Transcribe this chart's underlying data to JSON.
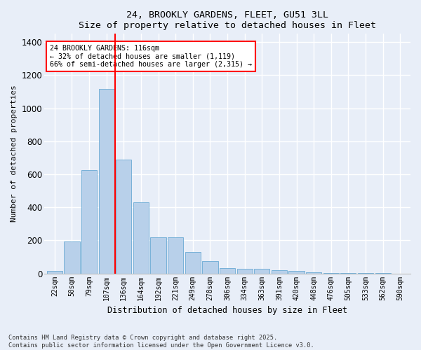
{
  "title": "24, BROOKLY GARDENS, FLEET, GU51 3LL",
  "subtitle": "Size of property relative to detached houses in Fleet",
  "xlabel": "Distribution of detached houses by size in Fleet",
  "ylabel": "Number of detached properties",
  "categories": [
    "22sqm",
    "50sqm",
    "79sqm",
    "107sqm",
    "136sqm",
    "164sqm",
    "192sqm",
    "221sqm",
    "249sqm",
    "278sqm",
    "306sqm",
    "334sqm",
    "363sqm",
    "391sqm",
    "420sqm",
    "448sqm",
    "476sqm",
    "505sqm",
    "533sqm",
    "562sqm",
    "590sqm"
  ],
  "values": [
    15,
    195,
    625,
    1115,
    690,
    430,
    220,
    220,
    130,
    75,
    32,
    27,
    27,
    18,
    14,
    9,
    4,
    2,
    1,
    1,
    0
  ],
  "bar_color": "#b8d0ea",
  "bar_edge_color": "#6aaad4",
  "background_color": "#e8eef8",
  "grid_color": "#ffffff",
  "vline_x": 3.5,
  "vline_color": "red",
  "annotation_text": "24 BROOKLY GARDENS: 116sqm\n← 32% of detached houses are smaller (1,119)\n66% of semi-detached houses are larger (2,315) →",
  "annotation_box_color": "red",
  "ylim": [
    0,
    1450
  ],
  "yticks": [
    0,
    200,
    400,
    600,
    800,
    1000,
    1200,
    1400
  ],
  "fig_width": 6.0,
  "fig_height": 5.0,
  "footer": "Contains HM Land Registry data © Crown copyright and database right 2025.\nContains public sector information licensed under the Open Government Licence v3.0."
}
